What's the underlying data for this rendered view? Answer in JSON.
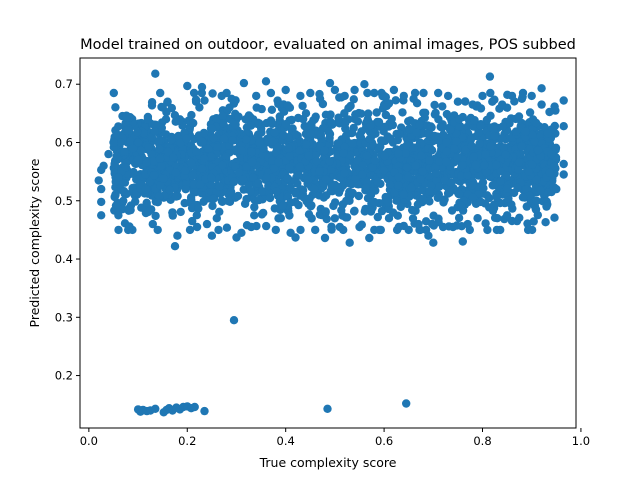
{
  "chart_data": {
    "type": "scatter",
    "title": "Model trained on outdoor, evaluated on animal images, POS subbed",
    "xlabel": "True complexity score",
    "ylabel": "Predicted complexity score",
    "xlim": [
      -0.018,
      0.99
    ],
    "ylim": [
      0.11,
      0.745
    ],
    "xticks": [
      "0.0",
      "0.2",
      "0.4",
      "0.6",
      "0.8",
      "1.0"
    ],
    "yticks": [
      "0.2",
      "0.3",
      "0.4",
      "0.5",
      "0.6",
      "0.7"
    ],
    "grid": false,
    "marker_color": "#1f77b4",
    "series": [
      {
        "points": [
          [
            0.1,
            0.142
          ],
          [
            0.105,
            0.138
          ],
          [
            0.11,
            0.141
          ],
          [
            0.118,
            0.139
          ],
          [
            0.125,
            0.14
          ],
          [
            0.135,
            0.143
          ],
          [
            0.152,
            0.137
          ],
          [
            0.158,
            0.141
          ],
          [
            0.163,
            0.144
          ],
          [
            0.17,
            0.14
          ],
          [
            0.178,
            0.145
          ],
          [
            0.185,
            0.142
          ],
          [
            0.192,
            0.146
          ],
          [
            0.2,
            0.147
          ],
          [
            0.208,
            0.144
          ],
          [
            0.215,
            0.146
          ],
          [
            0.235,
            0.139
          ],
          [
            0.485,
            0.143
          ],
          [
            0.645,
            0.152
          ],
          [
            0.295,
            0.295
          ],
          [
            0.135,
            0.718
          ],
          [
            0.815,
            0.713
          ],
          [
            0.2,
            0.697
          ],
          [
            0.23,
            0.695
          ],
          [
            0.315,
            0.702
          ],
          [
            0.36,
            0.705
          ],
          [
            0.49,
            0.702
          ],
          [
            0.56,
            0.7
          ],
          [
            0.92,
            0.693
          ],
          [
            0.235,
            0.672
          ],
          [
            0.965,
            0.672
          ],
          [
            0.965,
            0.628
          ],
          [
            0.965,
            0.563
          ],
          [
            0.965,
            0.545
          ],
          [
            0.025,
            0.553
          ],
          [
            0.025,
            0.52
          ],
          [
            0.025,
            0.498
          ],
          [
            0.025,
            0.475
          ],
          [
            0.175,
            0.422
          ],
          [
            0.3,
            0.437
          ],
          [
            0.42,
            0.437
          ],
          [
            0.48,
            0.436
          ],
          [
            0.53,
            0.428
          ],
          [
            0.57,
            0.436
          ],
          [
            0.7,
            0.428
          ],
          [
            0.76,
            0.43
          ],
          [
            0.06,
            0.475
          ],
          [
            0.07,
            0.5
          ],
          [
            0.08,
            0.62
          ],
          [
            0.09,
            0.59
          ],
          [
            0.1,
            0.57
          ],
          [
            0.1,
            0.6
          ],
          [
            0.12,
            0.64
          ],
          [
            0.13,
            0.46
          ],
          [
            0.14,
            0.45
          ],
          [
            0.15,
            0.66
          ],
          [
            0.16,
            0.67
          ],
          [
            0.17,
            0.48
          ],
          [
            0.18,
            0.44
          ],
          [
            0.21,
            0.465
          ],
          [
            0.22,
            0.455
          ],
          [
            0.24,
            0.46
          ],
          [
            0.25,
            0.44
          ],
          [
            0.26,
            0.47
          ],
          [
            0.27,
            0.68
          ],
          [
            0.28,
            0.685
          ],
          [
            0.29,
            0.675
          ],
          [
            0.31,
            0.445
          ],
          [
            0.33,
            0.455
          ],
          [
            0.34,
            0.68
          ],
          [
            0.37,
            0.685
          ],
          [
            0.38,
            0.45
          ],
          [
            0.39,
            0.47
          ],
          [
            0.4,
            0.69
          ],
          [
            0.41,
            0.445
          ],
          [
            0.43,
            0.68
          ],
          [
            0.45,
            0.685
          ],
          [
            0.46,
            0.45
          ],
          [
            0.47,
            0.675
          ],
          [
            0.5,
            0.69
          ],
          [
            0.51,
            0.455
          ],
          [
            0.52,
            0.68
          ],
          [
            0.54,
            0.69
          ],
          [
            0.55,
            0.455
          ],
          [
            0.58,
            0.685
          ],
          [
            0.59,
            0.45
          ],
          [
            0.6,
            0.68
          ],
          [
            0.61,
            0.47
          ],
          [
            0.62,
            0.69
          ],
          [
            0.63,
            0.455
          ],
          [
            0.64,
            0.68
          ],
          [
            0.65,
            0.45
          ],
          [
            0.66,
            0.675
          ],
          [
            0.67,
            0.46
          ],
          [
            0.68,
            0.685
          ],
          [
            0.69,
            0.44
          ],
          [
            0.71,
            0.685
          ],
          [
            0.72,
            0.455
          ],
          [
            0.73,
            0.68
          ],
          [
            0.74,
            0.455
          ],
          [
            0.75,
            0.67
          ],
          [
            0.77,
            0.46
          ],
          [
            0.78,
            0.665
          ],
          [
            0.79,
            0.47
          ],
          [
            0.8,
            0.68
          ],
          [
            0.81,
            0.45
          ],
          [
            0.82,
            0.67
          ],
          [
            0.83,
            0.47
          ],
          [
            0.84,
            0.665
          ],
          [
            0.85,
            0.475
          ],
          [
            0.86,
            0.68
          ],
          [
            0.87,
            0.465
          ],
          [
            0.88,
            0.675
          ],
          [
            0.89,
            0.49
          ],
          [
            0.9,
            0.68
          ],
          [
            0.91,
            0.5
          ],
          [
            0.92,
            0.665
          ],
          [
            0.93,
            0.49
          ],
          [
            0.94,
            0.58
          ],
          [
            0.95,
            0.52
          ],
          [
            0.02,
            0.535
          ],
          [
            0.03,
            0.56
          ],
          [
            0.04,
            0.58
          ],
          [
            0.05,
            0.6
          ],
          [
            0.06,
            0.54
          ]
        ]
      }
    ]
  }
}
